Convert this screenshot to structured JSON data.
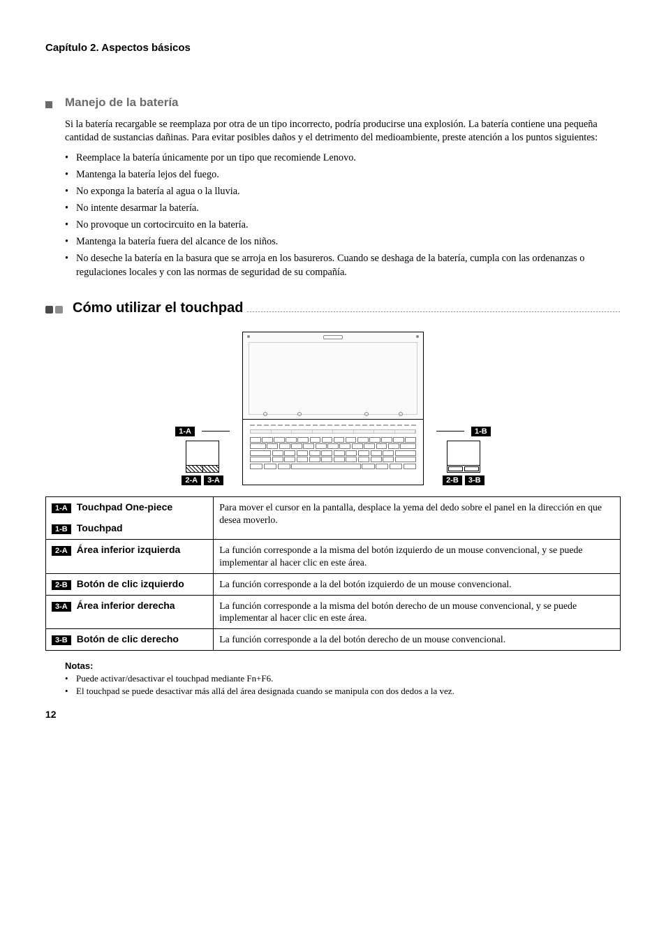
{
  "chapter": "Capítulo 2. Aspectos básicos",
  "section1": {
    "title": "Manejo de la batería",
    "intro": "Si la batería recargable se reemplaza por otra de un tipo incorrecto, podría producirse una explosión. La batería contiene una pequeña cantidad de sustancias dañinas. Para evitar posibles daños y el detrimento del medioambiente, preste atención a los puntos siguientes:",
    "bullets": [
      "Reemplace la batería únicamente por un tipo que recomiende Lenovo.",
      "Mantenga la batería lejos del fuego.",
      "No exponga la batería al agua o la lluvia.",
      "No intente desarmar la batería.",
      "No provoque un cortocircuito en la batería.",
      "Mantenga la batería fuera del alcance de los niños.",
      "No deseche la batería en la basura que se arroja en los basureros. Cuando se deshaga de la batería, cumpla con las ordenanzas o regulaciones locales y con las normas de seguridad de su compañía."
    ]
  },
  "section2": {
    "title": "Cómo utilizar el touchpad",
    "tags": {
      "t1a": "1-A",
      "t1b": "1-B",
      "t2a": "2-A",
      "t2b": "2-B",
      "t3a": "3-A",
      "t3b": "3-B"
    },
    "table": {
      "r1a": {
        "tag": "1-A",
        "label": "Touchpad One-piece"
      },
      "r1b": {
        "tag": "1-B",
        "label": "Touchpad"
      },
      "desc1": "Para mover el cursor en la pantalla, desplace la yema del dedo sobre el panel en la dirección en que desea moverlo.",
      "r2a": {
        "tag": "2-A",
        "label": "Área inferior izquierda",
        "desc": "La función corresponde a la misma del botón izquierdo de un mouse convencional, y se puede implementar al hacer clic en este área."
      },
      "r2b": {
        "tag": "2-B",
        "label": "Botón de clic izquierdo",
        "desc": "La función corresponde a la del botón izquierdo de un mouse convencional."
      },
      "r3a": {
        "tag": "3-A",
        "label": "Área inferior derecha",
        "desc": "La función corresponde a la misma del botón derecho de un mouse convencional, y se puede implementar al hacer clic en este área."
      },
      "r3b": {
        "tag": "3-B",
        "label": "Botón de clic derecho",
        "desc": "La función corresponde a la del botón derecho de un mouse convencional."
      }
    }
  },
  "notes": {
    "title": "Notas:",
    "items": [
      "Puede activar/desactivar el touchpad mediante Fn+F6.",
      "El touchpad se puede desactivar más allá del área designada cuando se manipula con dos dedos a la vez."
    ]
  },
  "page": "12"
}
